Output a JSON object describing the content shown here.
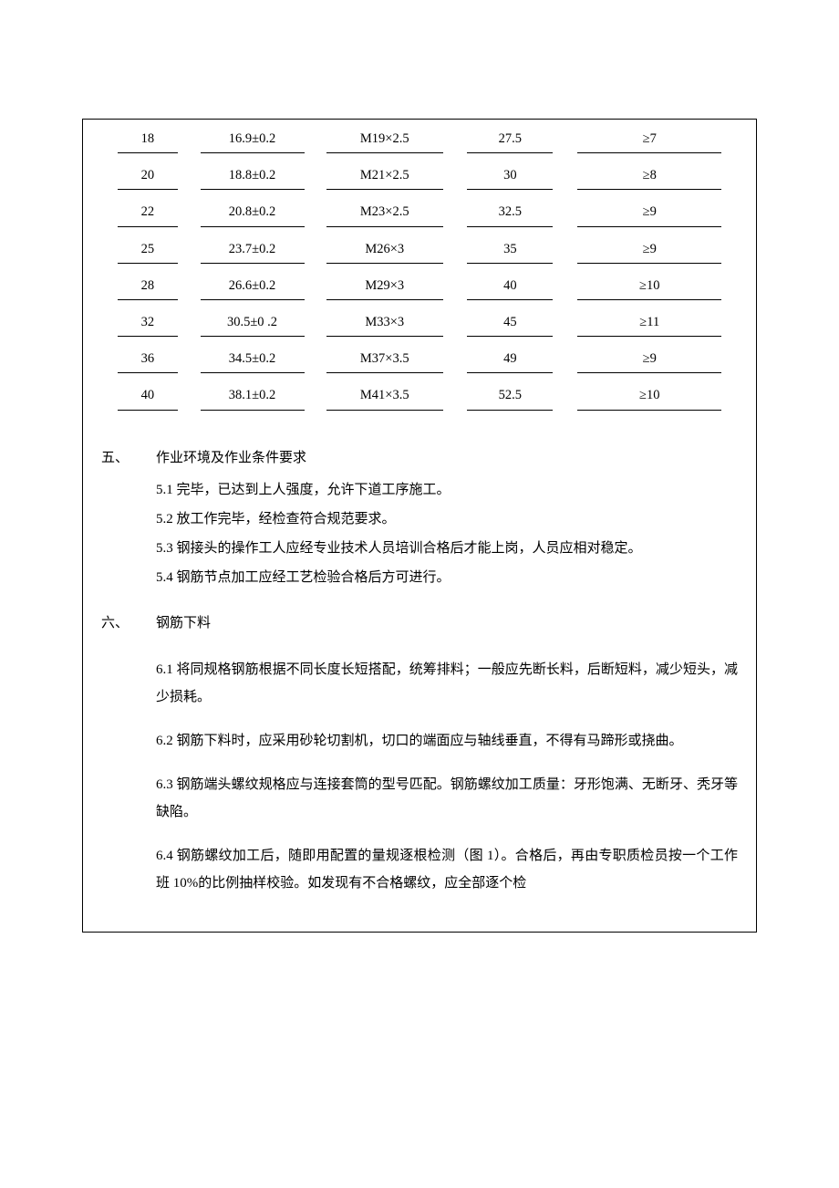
{
  "table": {
    "rows": [
      [
        "18",
        "16.9±0.2",
        "M19×2.5",
        "27.5",
        "≥7"
      ],
      [
        "20",
        "18.8±0.2",
        "M21×2.5",
        "30",
        "≥8"
      ],
      [
        "22",
        "20.8±0.2",
        "M23×2.5",
        "32.5",
        "≥9"
      ],
      [
        "25",
        "23.7±0.2",
        "M26×3",
        "35",
        "≥9"
      ],
      [
        "28",
        "26.6±0.2",
        "M29×3",
        "40",
        "≥10"
      ],
      [
        "32",
        "30.5±0 .2",
        "M33×3",
        "45",
        "≥11"
      ],
      [
        "36",
        "34.5±0.2",
        "M37×3.5",
        "49",
        "≥9"
      ],
      [
        "40",
        "38.1±0.2",
        "M41×3.5",
        "52.5",
        "≥10"
      ]
    ]
  },
  "section5": {
    "num": "五、",
    "title": "作业环境及作业条件要求",
    "items": {
      "p1": "5.1 完毕，已达到上人强度，允许下道工序施工。",
      "p2": "5.2 放工作完毕，经检查符合规范要求。",
      "p3": "5.3 钢接头的操作工人应经专业技术人员培训合格后才能上岗，人员应相对稳定。",
      "p4": "5.4 钢筋节点加工应经工艺检验合格后方可进行。"
    }
  },
  "section6": {
    "num": "六、",
    "title": "钢筋下料",
    "items": {
      "p1": "6.1 将同规格钢筋根据不同长度长短搭配，统筹排料；一般应先断长料，后断短料，减少短头，减少损耗。",
      "p2": "6.2 钢筋下料时，应采用砂轮切割机，切口的端面应与轴线垂直，不得有马蹄形或挠曲。",
      "p3": "6.3 钢筋端头螺纹规格应与连接套筒的型号匹配。钢筋螺纹加工质量：牙形饱满、无断牙、秃牙等缺陷。",
      "p4": "6.4 钢筋螺纹加工后，随即用配置的量规逐根检测（图 1）。合格后，再由专职质检员按一个工作班 10%的比例抽样校验。如发现有不合格螺纹，应全部逐个检"
    }
  }
}
